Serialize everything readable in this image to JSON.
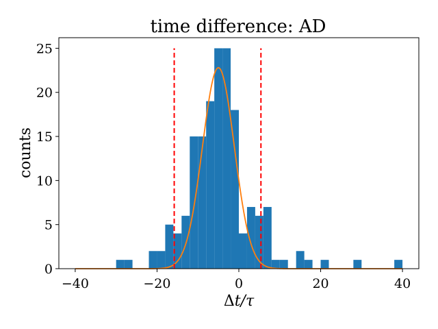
{
  "chart_data": {
    "type": "bar",
    "title": "time difference: AD",
    "xlabel": "Δt/τ",
    "ylabel": "counts",
    "xlim": [
      -44,
      44
    ],
    "ylim": [
      0,
      26.2
    ],
    "xticks": [
      -40,
      -20,
      0,
      20,
      40
    ],
    "xtick_labels": [
      "−40",
      "−20",
      "0",
      "20",
      "40"
    ],
    "yticks": [
      0,
      5,
      10,
      15,
      20,
      25
    ],
    "ytick_labels": [
      "0",
      "5",
      "10",
      "15",
      "20",
      "25"
    ],
    "grid": false,
    "bin_width": 2,
    "histogram": {
      "color": "#1f77b4",
      "bins": [
        {
          "x0": -30,
          "count": 1
        },
        {
          "x0": -28,
          "count": 1
        },
        {
          "x0": -22,
          "count": 2
        },
        {
          "x0": -20,
          "count": 2
        },
        {
          "x0": -18,
          "count": 5
        },
        {
          "x0": -16,
          "count": 4
        },
        {
          "x0": -14,
          "count": 6
        },
        {
          "x0": -12,
          "count": 15
        },
        {
          "x0": -10,
          "count": 15
        },
        {
          "x0": -8,
          "count": 19
        },
        {
          "x0": -6,
          "count": 25
        },
        {
          "x0": -4,
          "count": 25
        },
        {
          "x0": -2,
          "count": 18
        },
        {
          "x0": 0,
          "count": 4
        },
        {
          "x0": 2,
          "count": 7
        },
        {
          "x0": 4,
          "count": 6
        },
        {
          "x0": 6,
          "count": 7
        },
        {
          "x0": 8,
          "count": 1
        },
        {
          "x0": 10,
          "count": 1
        },
        {
          "x0": 14,
          "count": 2
        },
        {
          "x0": 16,
          "count": 1
        },
        {
          "x0": 20,
          "count": 1
        },
        {
          "x0": 28,
          "count": 1
        },
        {
          "x0": 38,
          "count": 1
        }
      ]
    },
    "fit_curve": {
      "type": "gaussian",
      "amplitude": 22.8,
      "mean": -5.0,
      "sigma": 3.9,
      "x_range": [
        -40,
        40
      ],
      "color": "#ff7f0e"
    },
    "vlines": [
      {
        "x": -15.8,
        "y_range": [
          0,
          25
        ],
        "color": "#ff0000",
        "style": "dashed"
      },
      {
        "x": 5.4,
        "y_range": [
          0,
          25
        ],
        "color": "#ff0000",
        "style": "dashed"
      }
    ]
  }
}
